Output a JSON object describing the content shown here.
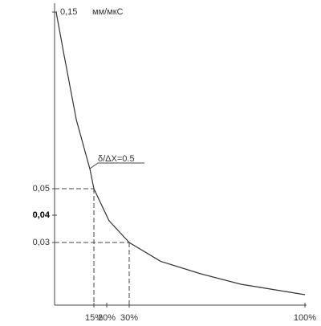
{
  "chart_data": {
    "type": "line",
    "y_label": "мм/мкС",
    "annotation": "δ/ΔX=0.5",
    "xlim": [
      0,
      100
    ],
    "ylim": [
      0,
      0.15
    ],
    "xticks": [
      {
        "value": 15,
        "label": "15%"
      },
      {
        "value": 20,
        "label": "20%"
      },
      {
        "value": 30,
        "label": "30%"
      },
      {
        "value": 100,
        "label": "100%"
      }
    ],
    "yticks": [
      {
        "value": 0.03,
        "label": "0,03"
      },
      {
        "value": 0.04,
        "label": "0,04"
      },
      {
        "value": 0.05,
        "label": "0,05"
      },
      {
        "value": 0.15,
        "label": "0,15"
      }
    ],
    "x": [
      0.6,
      3.7,
      8.3,
      13.5,
      15,
      21,
      30,
      42.5,
      58.5,
      74.5,
      100
    ],
    "series": [
      {
        "color": "#333333",
        "values": [
          0.15,
          0.125,
          0.089,
          0.061,
          0.05,
          0.038,
          0.03,
          0.021,
          0.015,
          0.01,
          0.005
        ]
      }
    ]
  }
}
